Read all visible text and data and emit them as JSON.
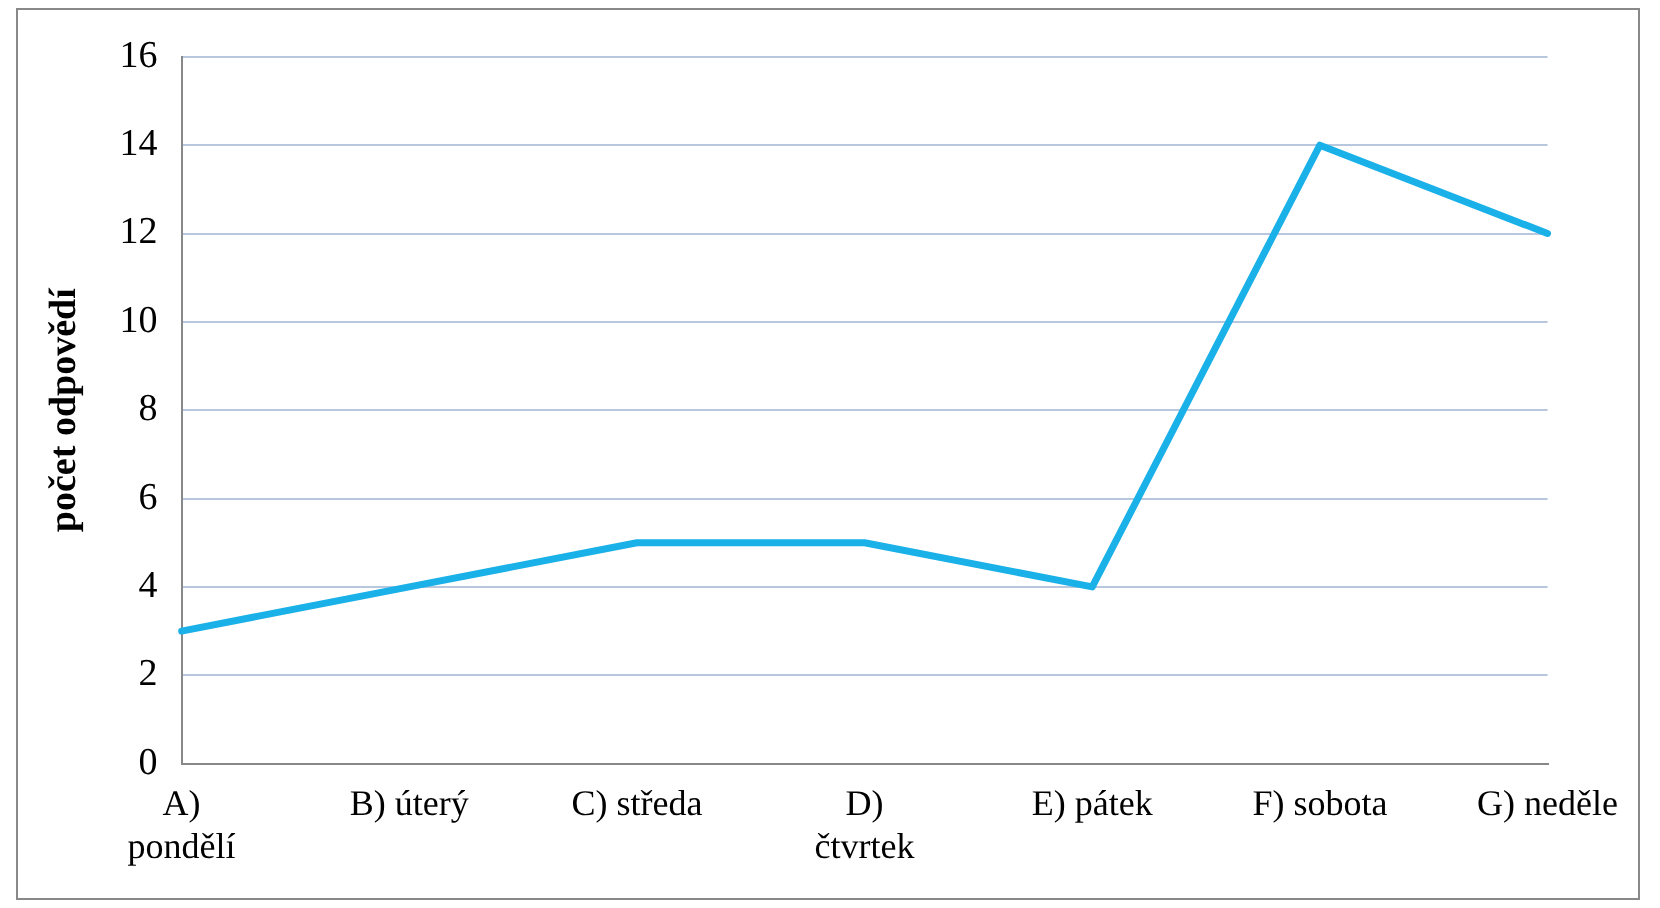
{
  "chart_data": {
    "type": "line",
    "ylabel": "počet odpovědí",
    "categories": [
      "A) pondělí",
      "B) úterý",
      "C) středa",
      "D) čtvrtek",
      "E) pátek",
      "F) sobota",
      "G) neděle"
    ],
    "series": [
      {
        "color": "#1ab0e8",
        "values": [
          3,
          4,
          5,
          5,
          4,
          14,
          12
        ]
      }
    ],
    "ylim": [
      0,
      16
    ],
    "yticks": [
      0,
      2,
      4,
      6,
      8,
      10,
      12,
      14,
      16
    ],
    "grid": "y",
    "legend": false,
    "marker": "none",
    "line_style": "solid"
  }
}
